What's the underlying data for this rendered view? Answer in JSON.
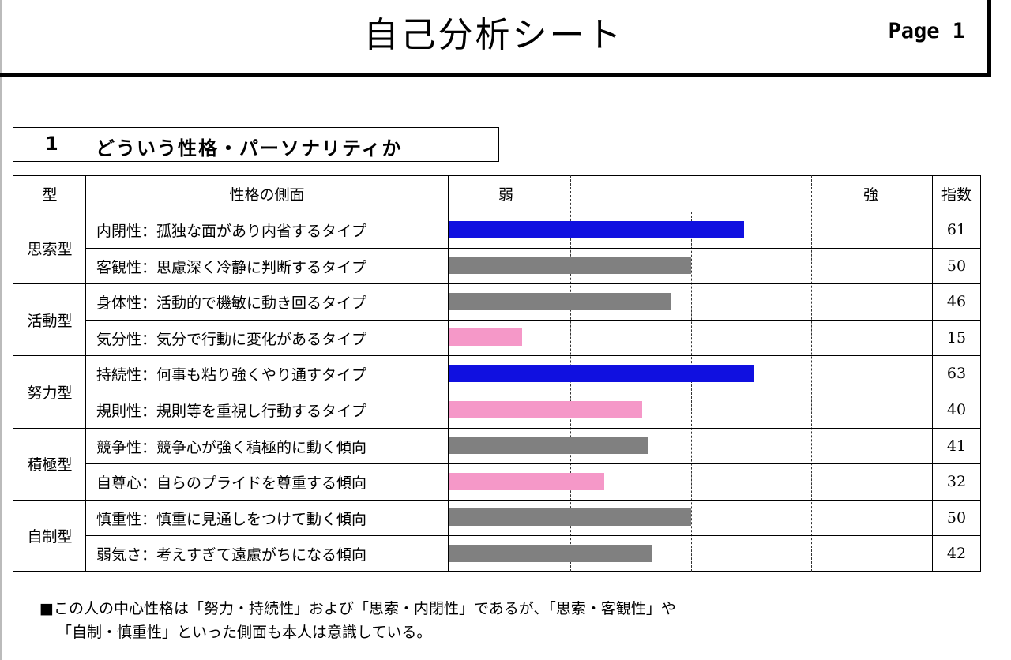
{
  "header": {
    "title": "自己分析シート",
    "page": "Page 1"
  },
  "section": {
    "number": "1",
    "title": "どういう性格・パーソナリティか"
  },
  "table": {
    "col_type": "型",
    "col_aspect": "性格の側面",
    "col_weak": "弱",
    "col_strong": "強",
    "col_index": "指数"
  },
  "groups": [
    {
      "name": "思索型",
      "rows": [
        {
          "label": "内閉性：孤独な面があり内省するタイプ",
          "value": 61,
          "color": "#1010e0"
        },
        {
          "label": "客観性：思慮深く冷静に判断するタイプ",
          "value": 50,
          "color": "#808080"
        }
      ]
    },
    {
      "name": "活動型",
      "rows": [
        {
          "label": "身体性：活動的で機敏に動き回るタイプ",
          "value": 46,
          "color": "#808080"
        },
        {
          "label": "気分性：気分で行動に変化があるタイプ",
          "value": 15,
          "color": "#f598c8"
        }
      ]
    },
    {
      "name": "努力型",
      "rows": [
        {
          "label": "持続性：何事も粘り強くやり通すタイプ",
          "value": 63,
          "color": "#1010e0"
        },
        {
          "label": "規則性：規則等を重視し行動するタイプ",
          "value": 40,
          "color": "#f598c8"
        }
      ]
    },
    {
      "name": "積極型",
      "rows": [
        {
          "label": "競争性：競争心が強く積極的に動く傾向",
          "value": 41,
          "color": "#808080"
        },
        {
          "label": "自尊心：自らのプライドを尊重する傾向",
          "value": 32,
          "color": "#f598c8"
        }
      ]
    },
    {
      "name": "自制型",
      "rows": [
        {
          "label": "慎重性：慎重に見通しをつけて動く傾向",
          "value": 50,
          "color": "#808080"
        },
        {
          "label": "弱気さ：考えすぎて遠慮がちになる傾向",
          "value": 42,
          "color": "#808080"
        }
      ]
    }
  ],
  "chart_data": {
    "type": "bar",
    "orientation": "horizontal",
    "categories": [
      "内閉性",
      "客観性",
      "身体性",
      "気分性",
      "持続性",
      "規則性",
      "競争性",
      "自尊心",
      "慎重性",
      "弱気さ"
    ],
    "values": [
      61,
      50,
      46,
      15,
      63,
      40,
      41,
      32,
      50,
      42
    ],
    "xlim": [
      0,
      100
    ],
    "reference_lines": [
      25,
      50,
      75
    ],
    "colors": {
      "high": "#1010e0",
      "mid": "#808080",
      "low": "#f598c8"
    }
  },
  "comment": {
    "line1": "■この人の中心性格は「努力・持続性」および「思索・内閉性」であるが、「思索・客観性」や",
    "line2": "「自制・慎重性」といった側面も本人は意識している。"
  }
}
